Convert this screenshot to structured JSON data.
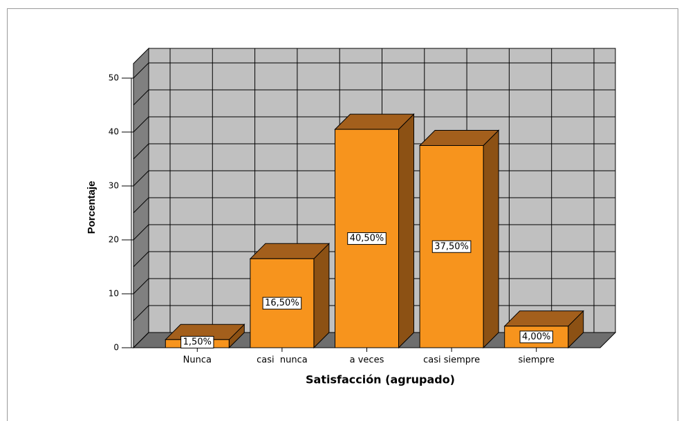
{
  "chart_data": {
    "type": "bar3d",
    "categories": [
      "Nunca",
      "casi  nunca",
      "a veces",
      "casi siempre",
      "siempre"
    ],
    "values": [
      1.5,
      16.5,
      40.5,
      37.5,
      4.0
    ],
    "value_labels": [
      "1,50%",
      "16,50%",
      "40,50%",
      "37,50%",
      "4,00%"
    ],
    "color": "#f7941d",
    "xlabel": "Satisfacción (agrupado)",
    "ylabel": "Porcentaje",
    "ylim": [
      0,
      50
    ],
    "yticks": [
      0,
      10,
      20,
      30,
      40,
      50
    ],
    "grid": true
  }
}
